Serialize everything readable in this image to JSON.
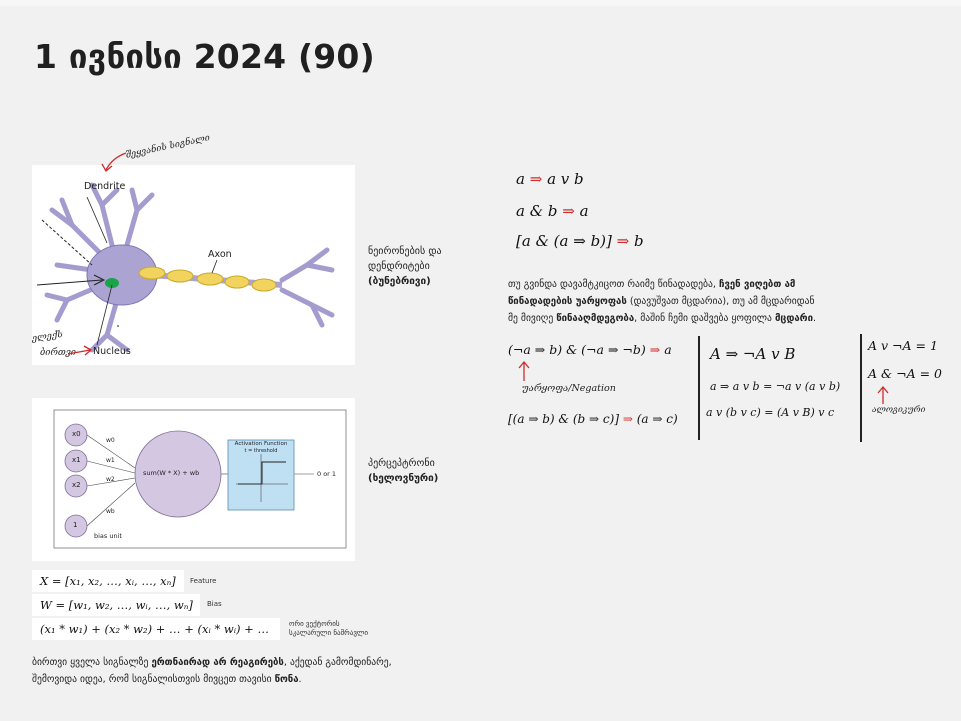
{
  "title": "1 ივნისი 2024 (90)",
  "neuron": {
    "dendrite_label": "Dendrite",
    "axon_label": "Axon",
    "nucleus_label": "Nucleus",
    "hw_top": "შეყვანის სიგნალი",
    "hw_left_1": "ელექს",
    "hw_left_2": "ბირთვი",
    "caption_line1": "ნეირონების და",
    "caption_line2": "დენდრიტები",
    "caption_bold": "(ბუნებრივი)"
  },
  "perceptron": {
    "inputs": [
      "x0",
      "x1",
      "x2",
      "1"
    ],
    "weights": [
      "w0",
      "w1",
      "w2",
      "wb"
    ],
    "sum_text": "sum(W * X) + wb",
    "activation_title": "Activation Function",
    "activation_sub": "t = threshold",
    "output": "0 or 1",
    "bias_unit": "bias unit",
    "caption_line1": "პერცეპტრონი",
    "caption_bold": "(ხელოვნური)"
  },
  "formulas": [
    {
      "text": "X = [x₁, x₂, …, xᵢ, …, xₙ]",
      "note": "Feature"
    },
    {
      "text": "W = [w₁, w₂, …, wᵢ, …, wₙ]",
      "note": "Bias"
    },
    {
      "text": "(x₁ * w₁) + (x₂ * w₂) + … + (xᵢ * wᵢ) + …",
      "note_line1": "ორი ვექტორის",
      "note_line2": "სკალარული ნამრავლი"
    }
  ],
  "bottom_text": {
    "line1_a": "ბირთვი ყველა სიგნალზე ",
    "line1_b": "ერთნაირად არ რეაგირებს",
    "line1_c": ", აქედან გამომდინარე,",
    "line2_a": "შემოვიდა იდეა, რომ სიგნალისთვის მივცეთ თავისი ",
    "line2_b": "წონა",
    "line2_c": "."
  },
  "logic_top": [
    {
      "left": "a",
      "right": "a v b"
    },
    {
      "left": "a & b",
      "right": "a"
    },
    {
      "left": "[a & (a ⇒ b)]",
      "right": "b"
    }
  ],
  "middle_para": {
    "l1": "თუ გვინდა დავამტკიცოთ რაიმე წინადადება, ",
    "l1b": "ჩვენ ვიღებთ ამ",
    "l2b": "წინადადების უარყოფას",
    "l2": " (დავუშვათ მცდარია), თუ ამ მცდარიდან",
    "l3": "მე მივიღე ",
    "l3b": "წინააღმდეგობა",
    "l3c": ", მაშინ ჩემი დაშვება ყოფილა ",
    "l3d": "მცდარი",
    "l3e": "."
  },
  "logic_bottom": {
    "expr1_left": "(¬a ⇒ b) & (¬a ⇒ ¬b)",
    "expr1_right": "a",
    "negation_label": "უარყოფა/Negation",
    "expr2_left": "[(a ⇒ b) & (b ⇒ c)]",
    "expr2_right": "(a ⇒ c)",
    "col2_l1": "A ⇒ ¬A v B",
    "col2_l2": "a ⇒ a v b = ¬a v (a v b)",
    "col2_l3": "a v (b v c) = (A v B) v c",
    "col3_l1": "A v ¬A = 1",
    "col3_l2": "A & ¬A = 0",
    "col3_label": "ალოგიკური"
  },
  "colors": {
    "accent_red": "#d12a2a",
    "neuron_body": "#aba4d3",
    "myelin": "#f2d35e",
    "perceptron_node": "#d3c7e2",
    "activation_box": "#bfe0f3"
  }
}
